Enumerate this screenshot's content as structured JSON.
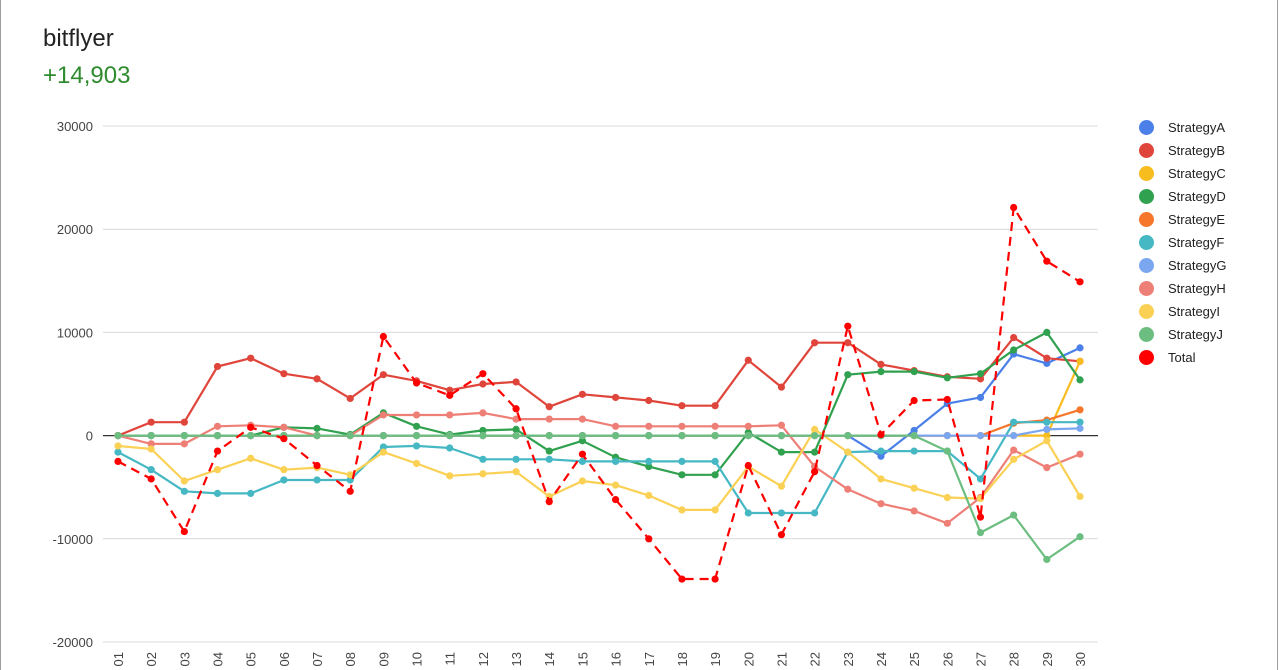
{
  "header": {
    "title": "bitflyer",
    "subtitle": "+14,903"
  },
  "colors": {
    "subtitle": "#2e8b2e",
    "grid": "#d9d9d9",
    "zero_line": "#333333"
  },
  "chart_data": {
    "type": "line",
    "title": "",
    "xlabel": "",
    "ylabel": "",
    "ylim": [
      -20000,
      30000
    ],
    "yticks": [
      -20000,
      -10000,
      0,
      10000,
      20000,
      30000
    ],
    "grid": true,
    "legend_position": "right",
    "categories": [
      "01",
      "02",
      "03",
      "04",
      "05",
      "06",
      "07",
      "08",
      "09",
      "10",
      "11",
      "12",
      "13",
      "14",
      "15",
      "16",
      "17",
      "18",
      "19",
      "20",
      "21",
      "22",
      "23",
      "24",
      "25",
      "26",
      "27",
      "28",
      "29",
      "30"
    ],
    "series": [
      {
        "name": "StrategyA",
        "color": "#4a80e8",
        "dashed": false,
        "values": [
          0,
          0,
          0,
          0,
          0,
          0,
          0,
          0,
          0,
          0,
          0,
          0,
          0,
          0,
          0,
          0,
          0,
          0,
          0,
          0,
          0,
          0,
          0,
          -2000,
          500,
          3100,
          3700,
          7900,
          7000,
          8500
        ]
      },
      {
        "name": "StrategyB",
        "color": "#e0453b",
        "dashed": false,
        "values": [
          0,
          1300,
          1300,
          6700,
          7500,
          6000,
          5500,
          3600,
          5900,
          5300,
          4400,
          5000,
          5200,
          2800,
          4000,
          3700,
          3400,
          2900,
          2900,
          7300,
          4700,
          9000,
          9000,
          6900,
          6300,
          5700,
          5500,
          9500,
          7500,
          7200
        ]
      },
      {
        "name": "StrategyC",
        "color": "#f7bc1e",
        "dashed": false,
        "values": [
          0,
          0,
          0,
          0,
          0,
          0,
          0,
          0,
          0,
          0,
          0,
          0,
          0,
          0,
          0,
          0,
          0,
          0,
          0,
          0,
          0,
          0,
          0,
          0,
          0,
          0,
          0,
          0,
          0,
          7200
        ]
      },
      {
        "name": "StrategyD",
        "color": "#30a14e",
        "dashed": false,
        "values": [
          0,
          0,
          0,
          0,
          0,
          800,
          700,
          100,
          2200,
          900,
          100,
          500,
          600,
          -1500,
          -500,
          -2100,
          -3000,
          -3800,
          -3800,
          300,
          -1600,
          -1600,
          5900,
          6200,
          6200,
          5600,
          6000,
          8300,
          10000,
          5400
        ]
      },
      {
        "name": "StrategyE",
        "color": "#f6762b",
        "dashed": false,
        "values": [
          0,
          0,
          0,
          0,
          0,
          0,
          0,
          0,
          0,
          0,
          0,
          0,
          0,
          0,
          0,
          0,
          0,
          0,
          0,
          0,
          0,
          0,
          0,
          0,
          0,
          0,
          0,
          1200,
          1500,
          2500
        ]
      },
      {
        "name": "StrategyF",
        "color": "#45b8c4",
        "dashed": false,
        "values": [
          -1600,
          -3300,
          -5400,
          -5600,
          -5600,
          -4300,
          -4300,
          -4300,
          -1100,
          -1000,
          -1200,
          -2300,
          -2300,
          -2300,
          -2500,
          -2500,
          -2500,
          -2500,
          -2500,
          -7500,
          -7500,
          -7500,
          -1600,
          -1500,
          -1500,
          -1500,
          -4200,
          1300,
          1300,
          1300
        ]
      },
      {
        "name": "StrategyG",
        "color": "#7ba7f0",
        "dashed": false,
        "values": [
          0,
          0,
          0,
          0,
          0,
          0,
          0,
          0,
          0,
          0,
          0,
          0,
          0,
          0,
          0,
          0,
          0,
          0,
          0,
          0,
          0,
          0,
          0,
          0,
          0,
          0,
          0,
          0,
          600,
          700
        ]
      },
      {
        "name": "StrategyH",
        "color": "#ee7f76",
        "dashed": false,
        "values": [
          0,
          -800,
          -800,
          900,
          1000,
          800,
          0,
          0,
          2000,
          2000,
          2000,
          2200,
          1600,
          1600,
          1600,
          900,
          900,
          900,
          900,
          900,
          1000,
          -3000,
          -5200,
          -6600,
          -7300,
          -8500,
          -6000,
          -1400,
          -3100,
          -1800
        ]
      },
      {
        "name": "StrategyI",
        "color": "#fad155",
        "dashed": false,
        "values": [
          -1000,
          -1300,
          -4400,
          -3300,
          -2200,
          -3300,
          -3100,
          -3800,
          -1600,
          -2700,
          -3900,
          -3700,
          -3500,
          -5900,
          -4400,
          -4800,
          -5800,
          -7200,
          -7200,
          -3000,
          -4900,
          600,
          -1600,
          -4200,
          -5100,
          -6000,
          -6100,
          -2300,
          -500,
          -5900
        ]
      },
      {
        "name": "StrategyJ",
        "color": "#6cbe80",
        "dashed": false,
        "values": [
          0,
          0,
          0,
          0,
          0,
          0,
          0,
          0,
          0,
          0,
          0,
          0,
          0,
          0,
          0,
          0,
          0,
          0,
          0,
          0,
          0,
          0,
          0,
          0,
          0,
          -1500,
          -9400,
          -7700,
          -12000,
          -9800
        ]
      },
      {
        "name": "Total",
        "color": "#ff0000",
        "dashed": true,
        "values": [
          -2500,
          -4200,
          -9300,
          -1500,
          800,
          -300,
          -2900,
          -5400,
          9600,
          5100,
          3900,
          6000,
          2600,
          -6400,
          -1800,
          -6200,
          -10000,
          -13900,
          -13900,
          -2900,
          -9600,
          -3500,
          10600,
          100,
          3400,
          3500,
          -7900,
          22100,
          16900,
          14900
        ]
      }
    ]
  }
}
